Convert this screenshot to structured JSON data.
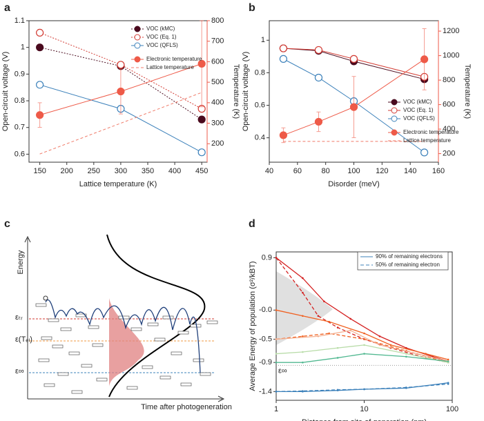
{
  "chart_data": [
    {
      "type": "line",
      "panel": "a",
      "xlabel": "Lattice temperature (K)",
      "ylabel": "Open-circuit voltage (V)",
      "y2label": "Temperature (K)",
      "xlim": [
        130,
        460
      ],
      "xticks": [
        150,
        200,
        250,
        300,
        350,
        400,
        450
      ],
      "ylim": [
        0.57,
        1.1
      ],
      "yticks": [
        0.6,
        0.7,
        0.8,
        0.9,
        1.0,
        1.1
      ],
      "y2lim": [
        110,
        800
      ],
      "y2ticks": [
        200,
        300,
        400,
        500,
        600,
        700,
        800
      ],
      "x": [
        150,
        300,
        450
      ],
      "series": [
        {
          "name": "VOC (kMC)",
          "color": "#4a0a1e",
          "marker": "filled",
          "dash": "2,2",
          "values": [
            1.0,
            0.93,
            0.73
          ]
        },
        {
          "name": "VOC (Eq. 1)",
          "color": "#d23a32",
          "marker": "open",
          "dash": "2,2",
          "values": [
            1.055,
            0.935,
            0.77
          ]
        },
        {
          "name": "VOC (QFLS)",
          "color": "#3b80ba",
          "marker": "open",
          "dash": "",
          "values": [
            0.86,
            0.77,
            0.607
          ]
        },
        {
          "name": "Electronic temperature",
          "color": "#ee5a48",
          "marker": "filled",
          "dash": "",
          "axis": "y2",
          "values": [
            340,
            455,
            590
          ],
          "errors": [
            60,
            110,
            210
          ]
        },
        {
          "name": "Lattice temperature",
          "color": "#f07a68",
          "marker": "none",
          "dash": "4,3",
          "axis": "y2",
          "values": [
            150,
            300,
            450
          ]
        }
      ]
    },
    {
      "type": "line",
      "panel": "b",
      "xlabel": "Disorder (meV)",
      "ylabel": "Open-circuit voltage (V)",
      "y2label": "Temperature (K)",
      "xlim": [
        40,
        160
      ],
      "xticks": [
        40,
        60,
        80,
        100,
        120,
        140,
        160
      ],
      "ylim": [
        0.25,
        1.12
      ],
      "yticks": [
        0.4,
        0.6,
        0.8,
        1.0
      ],
      "y2lim": [
        130,
        1285
      ],
      "y2ticks": [
        200,
        400,
        600,
        800,
        1000,
        1200
      ],
      "x": [
        50,
        75,
        100,
        150
      ],
      "series": [
        {
          "name": "VOC (kMC)",
          "color": "#4a0a1e",
          "marker": "filled",
          "dash": "",
          "values": [
            0.95,
            0.935,
            0.87,
            0.76
          ]
        },
        {
          "name": "VOC (Eq. 1)",
          "color": "#d23a32",
          "marker": "open",
          "dash": "",
          "values": [
            0.95,
            0.94,
            0.885,
            0.775
          ]
        },
        {
          "name": "VOC (QFLS)",
          "color": "#3b80ba",
          "marker": "open",
          "dash": "",
          "values": [
            0.885,
            0.77,
            0.625,
            0.31
          ]
        },
        {
          "name": "Electronic temperature",
          "color": "#ee5a48",
          "marker": "filled",
          "dash": "",
          "axis": "y2",
          "values": [
            350,
            460,
            580,
            970
          ],
          "errors": [
            60,
            80,
            250,
            250
          ]
        },
        {
          "name": "Lattice temperature",
          "color": "#f07a68",
          "marker": "none",
          "dash": "4,3",
          "axis": "y2",
          "values": [
            300,
            300,
            300,
            300
          ]
        }
      ]
    },
    {
      "type": "schematic",
      "panel": "c",
      "ylabel": "Energy",
      "xlabel": "Time after photogeneration",
      "levels": [
        {
          "label": "εₜᵣ",
          "color": "#d23a32"
        },
        {
          "label": "ε(Tₑₗ)",
          "color": "#f09a40"
        },
        {
          "label": "ε∞",
          "color": "#3b80ba"
        }
      ]
    },
    {
      "type": "line",
      "panel": "d",
      "xlabel": "Distance from site of generation (nm)",
      "ylabel": "Average Energy of population (σ²/kBT)",
      "xlog": true,
      "xlim": [
        1,
        100
      ],
      "xticks": [
        1,
        10,
        100
      ],
      "ylim": [
        -1.55,
        1.0
      ],
      "yticks": [
        0.9,
        {
          "value": 0,
          "label": "-0.0"
        },
        -0.5,
        -0.9,
        -1.4
      ],
      "refline": -0.95,
      "annotation": "ε∞",
      "legend": [
        {
          "label": "90% of remaining electrons",
          "color": "#3b80ba",
          "dash": ""
        },
        {
          "label": "50% of remaining electron",
          "color": "#3b80ba",
          "dash": "5,3"
        }
      ],
      "series": [
        {
          "color": "#d42020",
          "dash": "",
          "x": [
            1,
            2,
            3.5,
            7,
            15,
            30,
            60,
            90
          ],
          "values": [
            0.9,
            0.55,
            0.15,
            -0.15,
            -0.45,
            -0.65,
            -0.8,
            -0.88
          ]
        },
        {
          "color": "#d42020",
          "dash": "5,3",
          "x": [
            1,
            2,
            3,
            5,
            10,
            20,
            50,
            90
          ],
          "values": [
            0.9,
            0.3,
            -0.1,
            -0.3,
            -0.5,
            -0.65,
            -0.82,
            -0.9
          ]
        },
        {
          "color": "#f06020",
          "dash": "",
          "x": [
            1,
            2,
            4,
            10,
            20,
            50,
            90
          ],
          "values": [
            0,
            -0.1,
            -0.2,
            -0.4,
            -0.6,
            -0.75,
            -0.85
          ]
        },
        {
          "color": "#f06020",
          "dash": "5,3",
          "x": [
            1,
            2,
            4,
            10,
            30,
            90
          ],
          "values": [
            -0.5,
            -0.45,
            -0.4,
            -0.5,
            -0.7,
            -0.9
          ]
        },
        {
          "color": "#f4b090",
          "dash": "",
          "x": [
            1,
            3,
            7,
            15,
            40,
            90
          ],
          "values": [
            -0.5,
            -0.45,
            -0.35,
            -0.6,
            -0.75,
            -0.88
          ]
        },
        {
          "color": "#b8dca8",
          "dash": "",
          "x": [
            1,
            2,
            5,
            10,
            30,
            90
          ],
          "values": [
            -0.75,
            -0.72,
            -0.65,
            -0.6,
            -0.75,
            -0.9
          ]
        },
        {
          "color": "#50b890",
          "dash": "",
          "x": [
            1,
            2,
            5,
            10,
            30,
            90
          ],
          "values": [
            -0.9,
            -0.9,
            -0.82,
            -0.75,
            -0.8,
            -0.88
          ]
        },
        {
          "color": "#3b80ba",
          "dash": "",
          "x": [
            1,
            2,
            5,
            10,
            30,
            90
          ],
          "values": [
            -1.4,
            -1.4,
            -1.38,
            -1.36,
            -1.34,
            -1.25
          ]
        },
        {
          "color": "#3b80ba",
          "dash": "5,3",
          "x": [
            1,
            2,
            5,
            10,
            30,
            90
          ],
          "values": [
            -1.4,
            -1.39,
            -1.37,
            -1.36,
            -1.33,
            -1.27
          ]
        }
      ]
    }
  ]
}
